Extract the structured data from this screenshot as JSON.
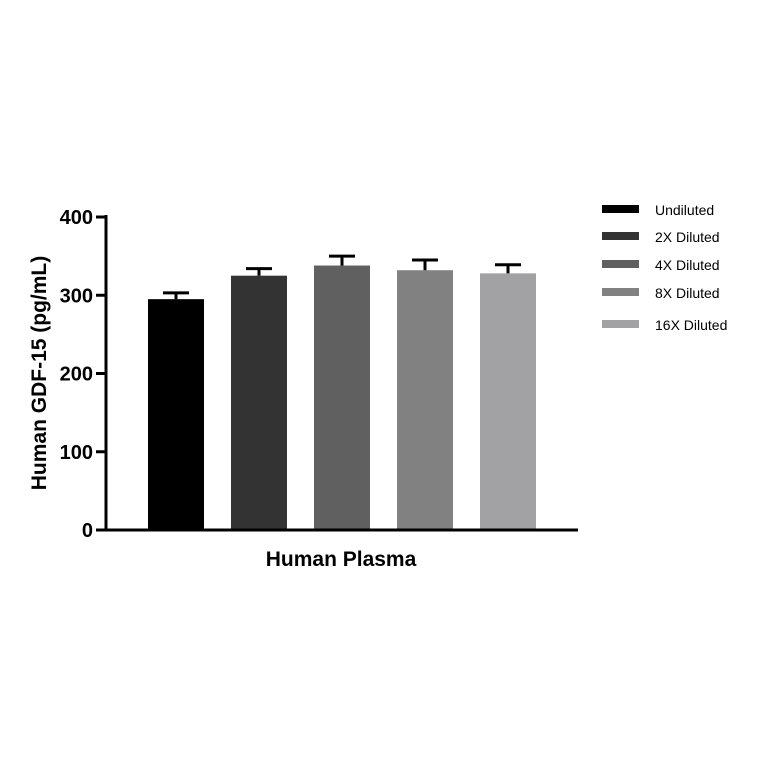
{
  "chart_data": {
    "type": "bar",
    "categories": [
      "Human Plasma"
    ],
    "xlabel": "Human Plasma",
    "ylabel": "Human GDF-15 (pg/mL)",
    "ylim": [
      0,
      400
    ],
    "yticks": [
      "0",
      "100",
      "200",
      "300",
      "400"
    ],
    "grid": false,
    "legend_position": "top-right",
    "series": [
      {
        "name": "Undiluted",
        "values": [
          295
        ],
        "error": [
          8
        ],
        "color": "#000000"
      },
      {
        "name": "2X Diluted",
        "values": [
          325
        ],
        "error": [
          9
        ],
        "color": "#333333"
      },
      {
        "name": "4X Diluted",
        "values": [
          338
        ],
        "error": [
          12
        ],
        "color": "#606060"
      },
      {
        "name": "8X Diluted",
        "values": [
          332
        ],
        "error": [
          13
        ],
        "color": "#818181"
      },
      {
        "name": "16X Diluted",
        "values": [
          328
        ],
        "error": [
          11
        ],
        "color": "#a2a2a5"
      }
    ]
  }
}
